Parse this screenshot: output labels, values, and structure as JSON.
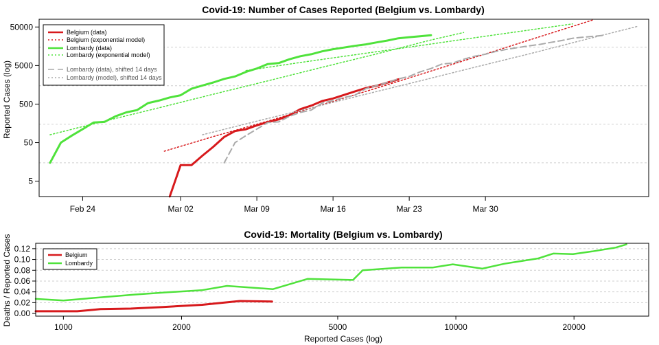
{
  "chart_data": [
    {
      "type": "line",
      "title": "Covid-19: Number of Cases Reported (Belgium vs. Lombardy)",
      "xlabel": "",
      "ylabel": "Reported Cases (log)",
      "y_scale": "log",
      "xlim": [
        -11,
        45
      ],
      "ylim_log": [
        0.3,
        4.9
      ],
      "x_ticks": [
        {
          "label": "Feb 24",
          "x": -7
        },
        {
          "label": "Mar 02",
          "x": 2
        },
        {
          "label": "Mar 09",
          "x": 9
        },
        {
          "label": "Mar 16",
          "x": 16
        },
        {
          "label": "Mar 23",
          "x": 23
        },
        {
          "label": "Mar 30",
          "x": 30
        }
      ],
      "y_ticks": [
        {
          "label": "5",
          "v": 5
        },
        {
          "label": "50",
          "v": 50
        },
        {
          "label": "500",
          "v": 500
        },
        {
          "label": "5000",
          "v": 5000
        },
        {
          "label": "50000",
          "v": 50000
        }
      ],
      "y_grid": [
        15,
        150,
        1500,
        15000
      ],
      "legend_position": "top-left",
      "series": [
        {
          "name": "Belgium (data)",
          "color": "#d7191c",
          "style": "solid",
          "width": 3,
          "points": [
            [
              1,
              2
            ],
            [
              2,
              13
            ],
            [
              3,
              13
            ],
            [
              4,
              23
            ],
            [
              5,
              39
            ],
            [
              6,
              70
            ],
            [
              7,
              100
            ],
            [
              8,
              111
            ],
            [
              9,
              140
            ],
            [
              10,
              170
            ],
            [
              11,
              200
            ],
            [
              12,
              258
            ],
            [
              13,
              369
            ],
            [
              14,
              455
            ],
            [
              15,
              600
            ],
            [
              16,
              700
            ],
            [
              17,
              860
            ],
            [
              18,
              1060
            ],
            [
              19,
              1300
            ],
            [
              20,
              1500
            ],
            [
              21,
              1800
            ],
            [
              22,
              2200
            ]
          ]
        },
        {
          "name": "Belgium (exponential model)",
          "color": "#d7191c",
          "style": "dotted",
          "width": 1.5,
          "points": [
            [
              0.5,
              30
            ],
            [
              5,
              72
            ],
            [
              10,
              180
            ],
            [
              15,
              480
            ],
            [
              20,
              1300
            ],
            [
              25,
              3600
            ],
            [
              30,
              10000
            ],
            [
              35,
              28000
            ],
            [
              40,
              78000
            ]
          ]
        },
        {
          "name": "Lombardy (data)",
          "color": "#4fe23b",
          "style": "solid",
          "width": 3,
          "points": [
            [
              -10,
              15
            ],
            [
              -9,
              50
            ],
            [
              -8,
              76
            ],
            [
              -7,
              112
            ],
            [
              -6,
              166
            ],
            [
              -5,
              172
            ],
            [
              -4,
              240
            ],
            [
              -3,
              305
            ],
            [
              -2,
              349
            ],
            [
              -1,
              531
            ],
            [
              0,
              615
            ],
            [
              1,
              742
            ],
            [
              2,
              849
            ],
            [
              3,
              1254
            ],
            [
              4,
              1520
            ],
            [
              5,
              1820
            ],
            [
              6,
              2251
            ],
            [
              7,
              2612
            ],
            [
              8,
              3420
            ],
            [
              9,
              4189
            ],
            [
              10,
              5469
            ],
            [
              11,
              5791
            ],
            [
              12,
              7280
            ],
            [
              13,
              8725
            ],
            [
              14,
              9820
            ],
            [
              15,
              11685
            ],
            [
              16,
              13272
            ],
            [
              17,
              14649
            ],
            [
              18,
              16220
            ],
            [
              19,
              17713
            ],
            [
              20,
              19884
            ],
            [
              21,
              22264
            ],
            [
              22,
              25515
            ],
            [
              23,
              27206
            ],
            [
              24,
              28761
            ],
            [
              25,
              30703
            ]
          ]
        },
        {
          "name": "Lombardy (exponential model)",
          "color": "#4fe23b",
          "style": "dotted",
          "width": 1.5,
          "points": [
            [
              -10,
              80
            ],
            [
              -5,
              180
            ],
            [
              0,
              400
            ],
            [
              5,
              900
            ],
            [
              10,
              2000
            ],
            [
              15,
              4500
            ],
            [
              20,
              10000
            ],
            [
              25,
              23000
            ],
            [
              28,
              36000
            ]
          ]
        },
        {
          "name": "Lombardy (model), shifted 14 days",
          "color": "#4fe23b",
          "style": "dotted",
          "width": 1.5,
          "points": [
            [
              8,
              3700
            ],
            [
              13,
              6000
            ],
            [
              18,
              9500
            ],
            [
              23,
              15000
            ],
            [
              28,
              24000
            ],
            [
              33,
              38000
            ],
            [
              38,
              60000
            ]
          ]
        },
        {
          "name": "Lombardy (data), shifted 14 days",
          "color": "#aaaaaa",
          "style": "dashed",
          "width": 2,
          "points": [
            [
              6,
              15
            ],
            [
              7,
              50
            ],
            [
              8,
              76
            ],
            [
              9,
              112
            ],
            [
              10,
              166
            ],
            [
              11,
              172
            ],
            [
              12,
              240
            ],
            [
              13,
              305
            ],
            [
              14,
              349
            ],
            [
              15,
              531
            ],
            [
              16,
              615
            ],
            [
              17,
              742
            ],
            [
              18,
              849
            ],
            [
              19,
              1254
            ],
            [
              20,
              1520
            ],
            [
              21,
              1820
            ],
            [
              22,
              2251
            ],
            [
              23,
              2612
            ],
            [
              24,
              3420
            ],
            [
              25,
              4189
            ],
            [
              26,
              5469
            ],
            [
              27,
              5791
            ],
            [
              28,
              7280
            ],
            [
              29,
              8725
            ],
            [
              30,
              9820
            ],
            [
              31,
              11685
            ],
            [
              32,
              13272
            ],
            [
              33,
              14649
            ],
            [
              34,
              16220
            ],
            [
              35,
              17713
            ],
            [
              36,
              19884
            ],
            [
              37,
              22264
            ],
            [
              38,
              25515
            ],
            [
              39,
              27206
            ],
            [
              40,
              28761
            ],
            [
              41,
              30703
            ]
          ]
        },
        {
          "name": "Lombardy (model), shifted 14 days",
          "color": "#aaaaaa",
          "style": "dotted",
          "width": 1.5,
          "points": [
            [
              4,
              80
            ],
            [
              9,
              180
            ],
            [
              14,
              400
            ],
            [
              19,
              900
            ],
            [
              24,
              2000
            ],
            [
              29,
              4500
            ],
            [
              34,
              10000
            ],
            [
              39,
              23000
            ],
            [
              44,
              52000
            ]
          ]
        }
      ],
      "legend": [
        {
          "label": "Belgium (data)",
          "color": "#d7191c",
          "style": "solid",
          "grey": false
        },
        {
          "label": "Belgium (exponential model)",
          "color": "#d7191c",
          "style": "dotted",
          "grey": false
        },
        {
          "label": "Lombardy (data)",
          "color": "#4fe23b",
          "style": "solid",
          "grey": false
        },
        {
          "label": "Lombardy (exponential model)",
          "color": "#4fe23b",
          "style": "dotted",
          "grey": false
        },
        {
          "label": "Lombardy (data), shifted 14 days",
          "color": "#aaaaaa",
          "style": "dashed",
          "grey": true
        },
        {
          "label": "Lombardy (model), shifted 14 days",
          "color": "#aaaaaa",
          "style": "dotted",
          "grey": true
        }
      ]
    },
    {
      "type": "line",
      "title": "Covid-19: Mortality (Belgium vs. Lombardy)",
      "xlabel": "Reported Cases (log)",
      "ylabel": "Deaths / Reported Cases",
      "x_scale": "log",
      "xlim": [
        850,
        31000
      ],
      "ylim": [
        -0.005,
        0.13
      ],
      "x_ticks": [
        {
          "label": "1000",
          "v": 1000
        },
        {
          "label": "2000",
          "v": 2000
        },
        {
          "label": "5000",
          "v": 5000
        },
        {
          "label": "10000",
          "v": 10000
        },
        {
          "label": "20000",
          "v": 20000
        }
      ],
      "y_ticks": [
        {
          "label": "0.00",
          "v": 0.0
        },
        {
          "label": "0.02",
          "v": 0.02
        },
        {
          "label": "0.04",
          "v": 0.04
        },
        {
          "label": "0.06",
          "v": 0.06
        },
        {
          "label": "0.08",
          "v": 0.08
        },
        {
          "label": "0.10",
          "v": 0.1
        },
        {
          "label": "0.12",
          "v": 0.12
        }
      ],
      "legend_position": "top-left",
      "series": [
        {
          "name": "Belgium",
          "color": "#d7191c",
          "style": "solid",
          "width": 3,
          "points": [
            [
              850,
              0.004
            ],
            [
              1085,
              0.004
            ],
            [
              1243,
              0.008
            ],
            [
              1486,
              0.009
            ],
            [
              1795,
              0.012
            ],
            [
              2257,
              0.016
            ],
            [
              2815,
              0.023
            ],
            [
              3401,
              0.022
            ]
          ]
        },
        {
          "name": "Lombardy",
          "color": "#4fe23b",
          "style": "solid",
          "width": 2.5,
          "points": [
            [
              850,
              0.027
            ],
            [
              1000,
              0.024
            ],
            [
              1254,
              0.03
            ],
            [
              1520,
              0.035
            ],
            [
              1820,
              0.039
            ],
            [
              2251,
              0.043
            ],
            [
              2612,
              0.051
            ],
            [
              3420,
              0.045
            ],
            [
              4189,
              0.064
            ],
            [
              5469,
              0.062
            ],
            [
              5791,
              0.08
            ],
            [
              7280,
              0.085
            ],
            [
              8725,
              0.085
            ],
            [
              9820,
              0.091
            ],
            [
              11685,
              0.083
            ],
            [
              13272,
              0.092
            ],
            [
              16220,
              0.102
            ],
            [
              17713,
              0.111
            ],
            [
              19884,
              0.11
            ],
            [
              22264,
              0.115
            ],
            [
              25515,
              0.122
            ],
            [
              27206,
              0.128
            ]
          ]
        }
      ],
      "legend": [
        {
          "label": "Belgium",
          "color": "#d7191c"
        },
        {
          "label": "Lombardy",
          "color": "#4fe23b"
        }
      ]
    }
  ]
}
